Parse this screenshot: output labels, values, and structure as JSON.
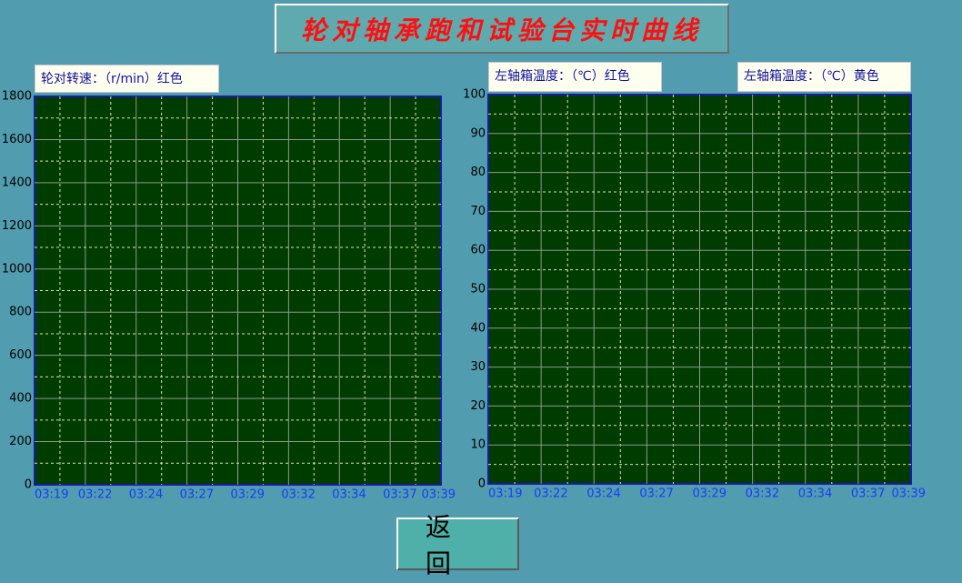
{
  "title": "轮对轴承跑和试验台实时曲线",
  "button": "返 回",
  "chart_data": [
    {
      "type": "line",
      "x": [
        "03:19",
        "03:22",
        "03:24",
        "03:27",
        "03:29",
        "03:32",
        "03:34",
        "03:37",
        "03:39"
      ],
      "series": [
        {
          "name": "轮对转速：（r/min）红色",
          "color": "#ff0000",
          "values": [
            null,
            null,
            null,
            null,
            null,
            null,
            null,
            null,
            null
          ]
        }
      ],
      "ylim": [
        0,
        1800
      ],
      "yticks": [
        0,
        200,
        400,
        600,
        800,
        1000,
        1200,
        1400,
        1600,
        1800
      ],
      "grid": true
    },
    {
      "type": "line",
      "x": [
        "03:19",
        "03:22",
        "03:24",
        "03:27",
        "03:29",
        "03:32",
        "03:34",
        "03:37",
        "03:39"
      ],
      "series": [
        {
          "name": "左轴箱温度：（℃）红色",
          "color": "#ff0000",
          "values": [
            null,
            null,
            null,
            null,
            null,
            null,
            null,
            null,
            null
          ]
        },
        {
          "name": "左轴箱温度：（℃）黄色",
          "color": "#ffff00",
          "values": [
            null,
            null,
            null,
            null,
            null,
            null,
            null,
            null,
            null
          ]
        }
      ],
      "ylim": [
        0,
        100
      ],
      "yticks": [
        0,
        10,
        20,
        30,
        40,
        50,
        60,
        70,
        80,
        90,
        100
      ],
      "grid": true
    }
  ]
}
